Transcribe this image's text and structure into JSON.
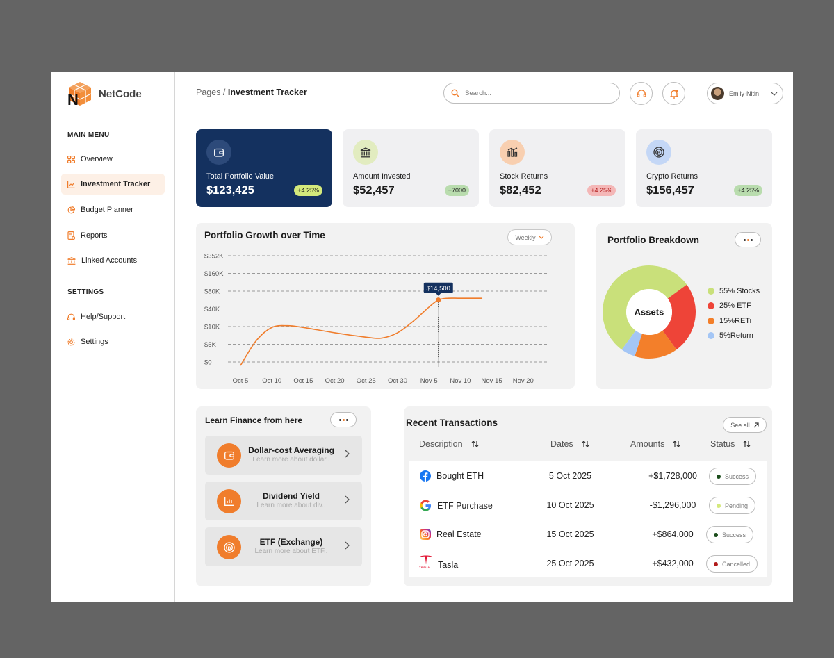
{
  "app": {
    "name": "NetCode"
  },
  "sidebar": {
    "main_menu_title": "MAIN MENU",
    "main_items": [
      {
        "label": "Overview",
        "icon": "grid-icon"
      },
      {
        "label": "Investment Tracker",
        "icon": "chart-icon",
        "active": true
      },
      {
        "label": "Budget Planner",
        "icon": "pie-icon"
      },
      {
        "label": "Reports",
        "icon": "report-icon"
      },
      {
        "label": "Linked Accounts",
        "icon": "bank-icon"
      }
    ],
    "settings_title": "SETTINGS",
    "settings_items": [
      {
        "label": "Help/Support",
        "icon": "headset-icon"
      },
      {
        "label": "Settings",
        "icon": "gear-icon"
      }
    ]
  },
  "header": {
    "breadcrumb_parent": "Pages /",
    "breadcrumb_current": "Investment Tracker",
    "search_placeholder": "Search...",
    "user_name": "Emily-Nitin"
  },
  "stats": [
    {
      "label": "Total Portfolio Value",
      "value": "$123,425",
      "badge": "+4.25%",
      "badge_color": "#d4e97c"
    },
    {
      "label": "Amount Invested",
      "value": "$52,457",
      "badge": "+7000",
      "badge_color": "#b9dcae"
    },
    {
      "label": "Stock Returns",
      "value": "$82,452",
      "badge": "+4.25%",
      "badge_color": "#f4b7b7"
    },
    {
      "label": "Crypto Returns",
      "value": "$156,457",
      "badge": "+4.25%",
      "badge_color": "#b9dcae"
    }
  ],
  "growth": {
    "title": "Portfolio Growth over Time",
    "period": "Weekly",
    "tooltip": "$14,500"
  },
  "chart_data": {
    "type": "line",
    "title": "Portfolio Growth over Time",
    "y_tick_labels": [
      "$0",
      "$5K",
      "$10K",
      "$40K",
      "$80K",
      "$160K",
      "$352K"
    ],
    "x_tick_labels": [
      "Oct 5",
      "Oct 10",
      "Oct 15",
      "Oct 20",
      "Oct 25",
      "Oct 30",
      "Nov 5",
      "Nov 10",
      "Nov 15",
      "Nov 20"
    ],
    "series": [
      {
        "values_in_tick_steps": [
          [
            0.0,
            -0.2
          ],
          [
            0.5,
            1.2
          ],
          [
            1.0,
            1.95
          ],
          [
            1.5,
            2.05
          ],
          [
            2.0,
            1.95
          ],
          [
            3.0,
            1.65
          ],
          [
            4.0,
            1.4
          ],
          [
            4.5,
            1.35
          ],
          [
            5.0,
            1.65
          ],
          [
            5.5,
            2.3
          ],
          [
            6.0,
            3.1
          ],
          [
            6.3,
            3.5
          ],
          [
            6.6,
            3.6
          ],
          [
            7.0,
            3.6
          ],
          [
            7.7,
            3.6
          ]
        ]
      }
    ],
    "highlight": {
      "x": 6.3,
      "label": "$14,500"
    },
    "grid": true
  },
  "breakdown": {
    "title": "Portfolio Breakdown",
    "center_label": "Assets",
    "slices": [
      {
        "label": "55% Stocks",
        "value": 55,
        "color": "#c9e07a"
      },
      {
        "label": "25% ETF",
        "value": 25,
        "color": "#ee4438"
      },
      {
        "label": "15%RETi",
        "value": 15,
        "color": "#f37f2a"
      },
      {
        "label": "5%Return",
        "value": 5,
        "color": "#a4c6f5"
      }
    ]
  },
  "learn": {
    "title": "Learn Finance from here",
    "items": [
      {
        "title": "Dollar-cost Averaging",
        "sub": "Learn more about dollar..",
        "icon": "wallet-icon"
      },
      {
        "title": "Dividend Yield",
        "sub": "Learn more about div..",
        "icon": "bar-chart-icon"
      },
      {
        "title": "ETF (Exchange)",
        "sub": "Learn more about ETF..",
        "icon": "coin-icon"
      }
    ]
  },
  "transactions": {
    "title": "Recent Transactions",
    "see_all": "See all",
    "columns": [
      "Description",
      "Dates",
      "Amounts",
      "Status"
    ],
    "rows": [
      {
        "desc": "Bought ETH",
        "date": "5 Oct 2025",
        "amount": "+$1,728,000",
        "status": "Success",
        "status_color": "#1b4d1b",
        "icon": "facebook-icon"
      },
      {
        "desc": "ETF Purchase",
        "date": "10 Oct 2025",
        "amount": "-$1,296,000",
        "status": "Pending",
        "status_color": "#d4e97c",
        "icon": "google-icon"
      },
      {
        "desc": "Real Estate",
        "date": "15 Oct 2025",
        "amount": "+$864,000",
        "status": "Success",
        "status_color": "#1b4d1b",
        "icon": "instagram-icon"
      },
      {
        "desc": "Tasla",
        "date": "25 Oct 2025",
        "amount": "+$432,000",
        "status": "Cancelled",
        "status_color": "#b11a1a",
        "icon": "tesla-icon",
        "icon_caption": "TESLA"
      }
    ]
  },
  "colors": {
    "accent": "#f07d2c",
    "navy": "#14315f"
  }
}
